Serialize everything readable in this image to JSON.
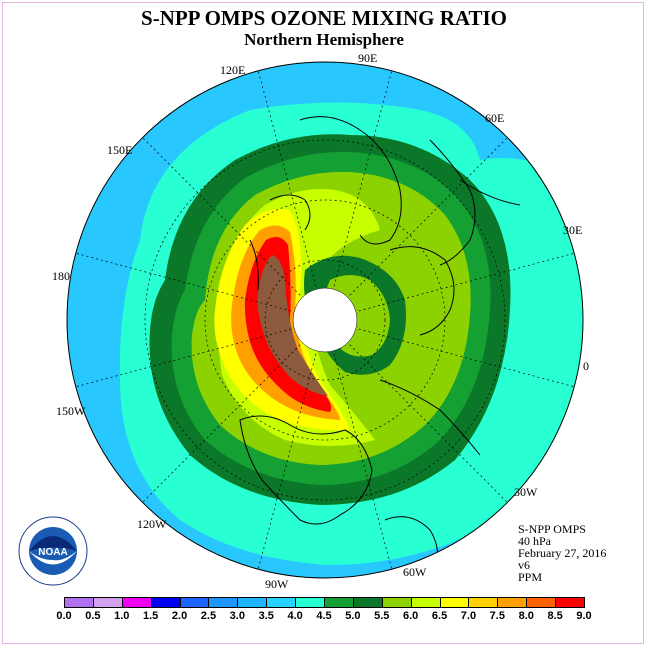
{
  "title": "S-NPP OMPS OZONE MIXING RATIO",
  "subtitle": "Northern Hemisphere",
  "longitude_labels": {
    "e90": "90E",
    "e60": "60E",
    "e30": "30E",
    "zero": "0",
    "w30": "30W",
    "w60": "60W",
    "w90": "90W",
    "w120": "120W",
    "w150": "150W",
    "dl180": "180",
    "e150": "150E",
    "e120": "120E"
  },
  "info": {
    "instrument": "S-NPP OMPS",
    "level": "40 hPa",
    "date": "February 27, 2016",
    "version": "v6",
    "units": "PPM"
  },
  "logo_text": "NOAA",
  "colorbar": {
    "ticks": [
      "0.0",
      "0.5",
      "1.0",
      "1.5",
      "2.0",
      "2.5",
      "3.0",
      "3.5",
      "4.0",
      "4.5",
      "5.0",
      "5.5",
      "6.0",
      "6.5",
      "7.0",
      "7.5",
      "8.0",
      "8.5",
      "9.0"
    ],
    "colors": [
      "#b070f0",
      "#d2a0ee",
      "#f000f0",
      "#0000f0",
      "#1e64ff",
      "#1e96ff",
      "#1eb4ff",
      "#28d2ff",
      "#28ffd2",
      "#14a032",
      "#0a7828",
      "#8cd200",
      "#c8ff00",
      "#ffff00",
      "#ffd200",
      "#ffa000",
      "#ff6400",
      "#ff0000",
      "#8c5a3c"
    ]
  },
  "map_colors": {
    "outer": "#28c8ff",
    "cyan": "#28ffd2",
    "green_dark": "#0a7828",
    "green": "#14a032",
    "lime": "#8cd200",
    "yellow_green": "#c8ff00",
    "yellow": "#ffff00",
    "orange": "#ffa000",
    "red": "#ff0000",
    "brown": "#8c5a3c"
  }
}
